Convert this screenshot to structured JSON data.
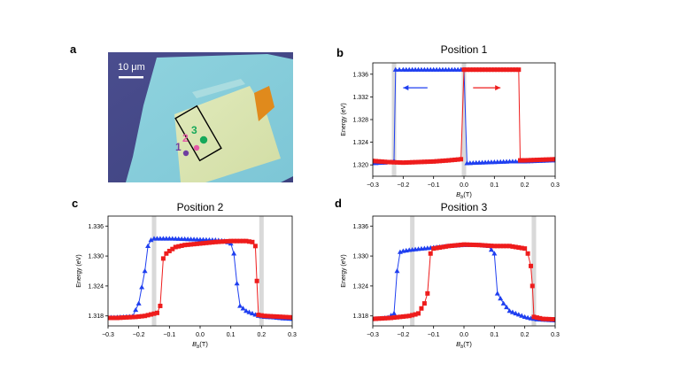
{
  "panels": {
    "a": {
      "letter": "a",
      "scalebar_label": "10 μm",
      "positions": [
        {
          "label": "1",
          "color": "#6f3fa0"
        },
        {
          "label": "2",
          "color": "#e55aa6"
        },
        {
          "label": "3",
          "color": "#16a85a"
        }
      ]
    },
    "b": {
      "letter": "b"
    },
    "c": {
      "letter": "c"
    },
    "d": {
      "letter": "d"
    }
  },
  "colors": {
    "series_down": "#1f3ff0",
    "series_up": "#ee1c1c",
    "band": "#cccccc"
  },
  "chart_data": [
    {
      "id": "b",
      "type": "scatter",
      "title": "Position 1",
      "xlabel_main": "B",
      "xlabel_sub": "b",
      "xlabel_unit": "(T)",
      "ylabel": "Energy (eV)",
      "xlim": [
        -0.3,
        0.3
      ],
      "ylim": [
        1.318,
        1.338
      ],
      "xticks": [
        -0.3,
        -0.2,
        -0.1,
        0.0,
        0.1,
        0.2,
        0.3
      ],
      "xtick_labels": [
        "−0.3",
        "−0.2",
        "−0.1",
        "0.0",
        "0.1",
        "0.2",
        "0.3"
      ],
      "yticks": [
        1.32,
        1.324,
        1.328,
        1.332,
        1.336
      ],
      "ytick_labels": [
        "1.320",
        "1.324",
        "1.328",
        "1.332",
        "1.336"
      ],
      "bands": [
        -0.23,
        0.0
      ],
      "arrows": [
        {
          "from": -0.12,
          "to": -0.2,
          "y": 1.3336,
          "series": "down"
        },
        {
          "from": 0.03,
          "to": 0.12,
          "y": 1.3336,
          "series": "up"
        }
      ],
      "series": [
        {
          "name": "down",
          "marker": "triangle",
          "x": [
            0.3,
            0.25,
            0.2,
            0.15,
            0.1,
            0.05,
            0.01,
            0.0,
            -0.02,
            -0.05,
            -0.1,
            -0.15,
            -0.2,
            -0.225,
            -0.23,
            -0.24,
            -0.26,
            -0.3
          ],
          "y": [
            1.3208,
            1.3207,
            1.3206,
            1.3206,
            1.3205,
            1.3204,
            1.3203,
            1.3368,
            1.3368,
            1.3368,
            1.3368,
            1.3368,
            1.3368,
            1.3368,
            1.3207,
            1.3205,
            1.3204,
            1.3203
          ]
        },
        {
          "name": "up",
          "marker": "square",
          "x": [
            -0.3,
            -0.25,
            -0.2,
            -0.15,
            -0.1,
            -0.05,
            -0.01,
            0.0,
            0.02,
            0.05,
            0.1,
            0.15,
            0.18,
            0.185,
            0.2,
            0.25,
            0.3
          ],
          "y": [
            1.3207,
            1.3205,
            1.3204,
            1.3205,
            1.3206,
            1.3208,
            1.321,
            1.3368,
            1.3368,
            1.3368,
            1.3368,
            1.3368,
            1.3368,
            1.3208,
            1.3208,
            1.3209,
            1.321
          ]
        }
      ]
    },
    {
      "id": "c",
      "type": "scatter",
      "title": "Position 2",
      "xlabel_main": "B",
      "xlabel_sub": "b",
      "xlabel_unit": "(T)",
      "ylabel": "Energy (eV)",
      "xlim": [
        -0.3,
        0.3
      ],
      "ylim": [
        1.316,
        1.338
      ],
      "xticks": [
        -0.3,
        -0.2,
        -0.1,
        0.0,
        0.1,
        0.2,
        0.3
      ],
      "xtick_labels": [
        "−0.3",
        "−0.2",
        "−0.1",
        "0.0",
        "0.1",
        "0.2",
        "0.3"
      ],
      "yticks": [
        1.318,
        1.324,
        1.33,
        1.336
      ],
      "ytick_labels": [
        "1.318",
        "1.324",
        "1.330",
        "1.336"
      ],
      "bands": [
        -0.15,
        0.2
      ],
      "arrows": [],
      "series": [
        {
          "name": "down",
          "marker": "triangle",
          "x": [
            0.3,
            0.27,
            0.24,
            0.21,
            0.19,
            0.17,
            0.15,
            0.13,
            0.12,
            0.11,
            0.1,
            0.08,
            0.05,
            0.0,
            -0.05,
            -0.1,
            -0.13,
            -0.15,
            -0.16,
            -0.17,
            -0.18,
            -0.2,
            -0.22,
            -0.25,
            -0.28,
            -0.3
          ],
          "y": [
            1.3174,
            1.3175,
            1.3177,
            1.3178,
            1.318,
            1.3185,
            1.319,
            1.32,
            1.3245,
            1.3305,
            1.3325,
            1.333,
            1.3332,
            1.3333,
            1.3334,
            1.3335,
            1.3335,
            1.3335,
            1.3332,
            1.332,
            1.327,
            1.3205,
            1.3179,
            1.3178,
            1.3177,
            1.3177
          ]
        },
        {
          "name": "up",
          "marker": "square",
          "x": [
            -0.3,
            -0.27,
            -0.24,
            -0.21,
            -0.18,
            -0.16,
            -0.14,
            -0.13,
            -0.12,
            -0.11,
            -0.1,
            -0.08,
            -0.05,
            0.0,
            0.05,
            0.1,
            0.15,
            0.17,
            0.18,
            0.185,
            0.19,
            0.21,
            0.24,
            0.27,
            0.3
          ],
          "y": [
            1.3176,
            1.3176,
            1.3177,
            1.3178,
            1.318,
            1.3183,
            1.3186,
            1.32,
            1.3295,
            1.3305,
            1.331,
            1.3318,
            1.3322,
            1.3325,
            1.3328,
            1.333,
            1.333,
            1.3328,
            1.332,
            1.325,
            1.3182,
            1.318,
            1.3179,
            1.3178,
            1.3177
          ]
        }
      ]
    },
    {
      "id": "d",
      "type": "scatter",
      "title": "Position 3",
      "xlabel_main": "B",
      "xlabel_sub": "b",
      "xlabel_unit": "(T)",
      "ylabel": "Energy (eV)",
      "xlim": [
        -0.3,
        0.3
      ],
      "ylim": [
        1.316,
        1.338
      ],
      "xticks": [
        -0.3,
        -0.2,
        -0.1,
        0.0,
        0.1,
        0.2,
        0.3
      ],
      "xtick_labels": [
        "−0.3",
        "−0.2",
        "−0.1",
        "0.0",
        "0.1",
        "0.2",
        "0.3"
      ],
      "yticks": [
        1.318,
        1.324,
        1.33,
        1.336
      ],
      "ytick_labels": [
        "1.318",
        "1.324",
        "1.330",
        "1.336"
      ],
      "bands": [
        -0.17,
        0.23
      ],
      "arrows": [],
      "series": [
        {
          "name": "down",
          "marker": "triangle",
          "x": [
            0.3,
            0.27,
            0.24,
            0.22,
            0.2,
            0.17,
            0.15,
            0.13,
            0.12,
            0.11,
            0.1,
            0.08,
            0.05,
            0.0,
            -0.05,
            -0.1,
            -0.15,
            -0.18,
            -0.2,
            -0.21,
            -0.22,
            -0.23,
            -0.25,
            -0.27,
            -0.3
          ],
          "y": [
            1.3171,
            1.3172,
            1.3173,
            1.3175,
            1.3178,
            1.3185,
            1.319,
            1.3205,
            1.3215,
            1.3225,
            1.3305,
            1.332,
            1.3322,
            1.3322,
            1.332,
            1.3317,
            1.3314,
            1.3312,
            1.331,
            1.3308,
            1.327,
            1.3185,
            1.3177,
            1.3175,
            1.3174
          ]
        },
        {
          "name": "up",
          "marker": "square",
          "x": [
            -0.3,
            -0.27,
            -0.24,
            -0.21,
            -0.18,
            -0.16,
            -0.15,
            -0.14,
            -0.13,
            -0.12,
            -0.11,
            -0.1,
            -0.05,
            0.0,
            0.05,
            0.1,
            0.15,
            0.2,
            0.21,
            0.22,
            0.225,
            0.23,
            0.26,
            0.3
          ],
          "y": [
            1.3174,
            1.3175,
            1.3176,
            1.3178,
            1.318,
            1.3183,
            1.3185,
            1.3195,
            1.3205,
            1.3225,
            1.3305,
            1.3315,
            1.332,
            1.3323,
            1.3322,
            1.332,
            1.332,
            1.3315,
            1.3305,
            1.328,
            1.324,
            1.3178,
            1.3174,
            1.3173
          ]
        }
      ]
    }
  ]
}
